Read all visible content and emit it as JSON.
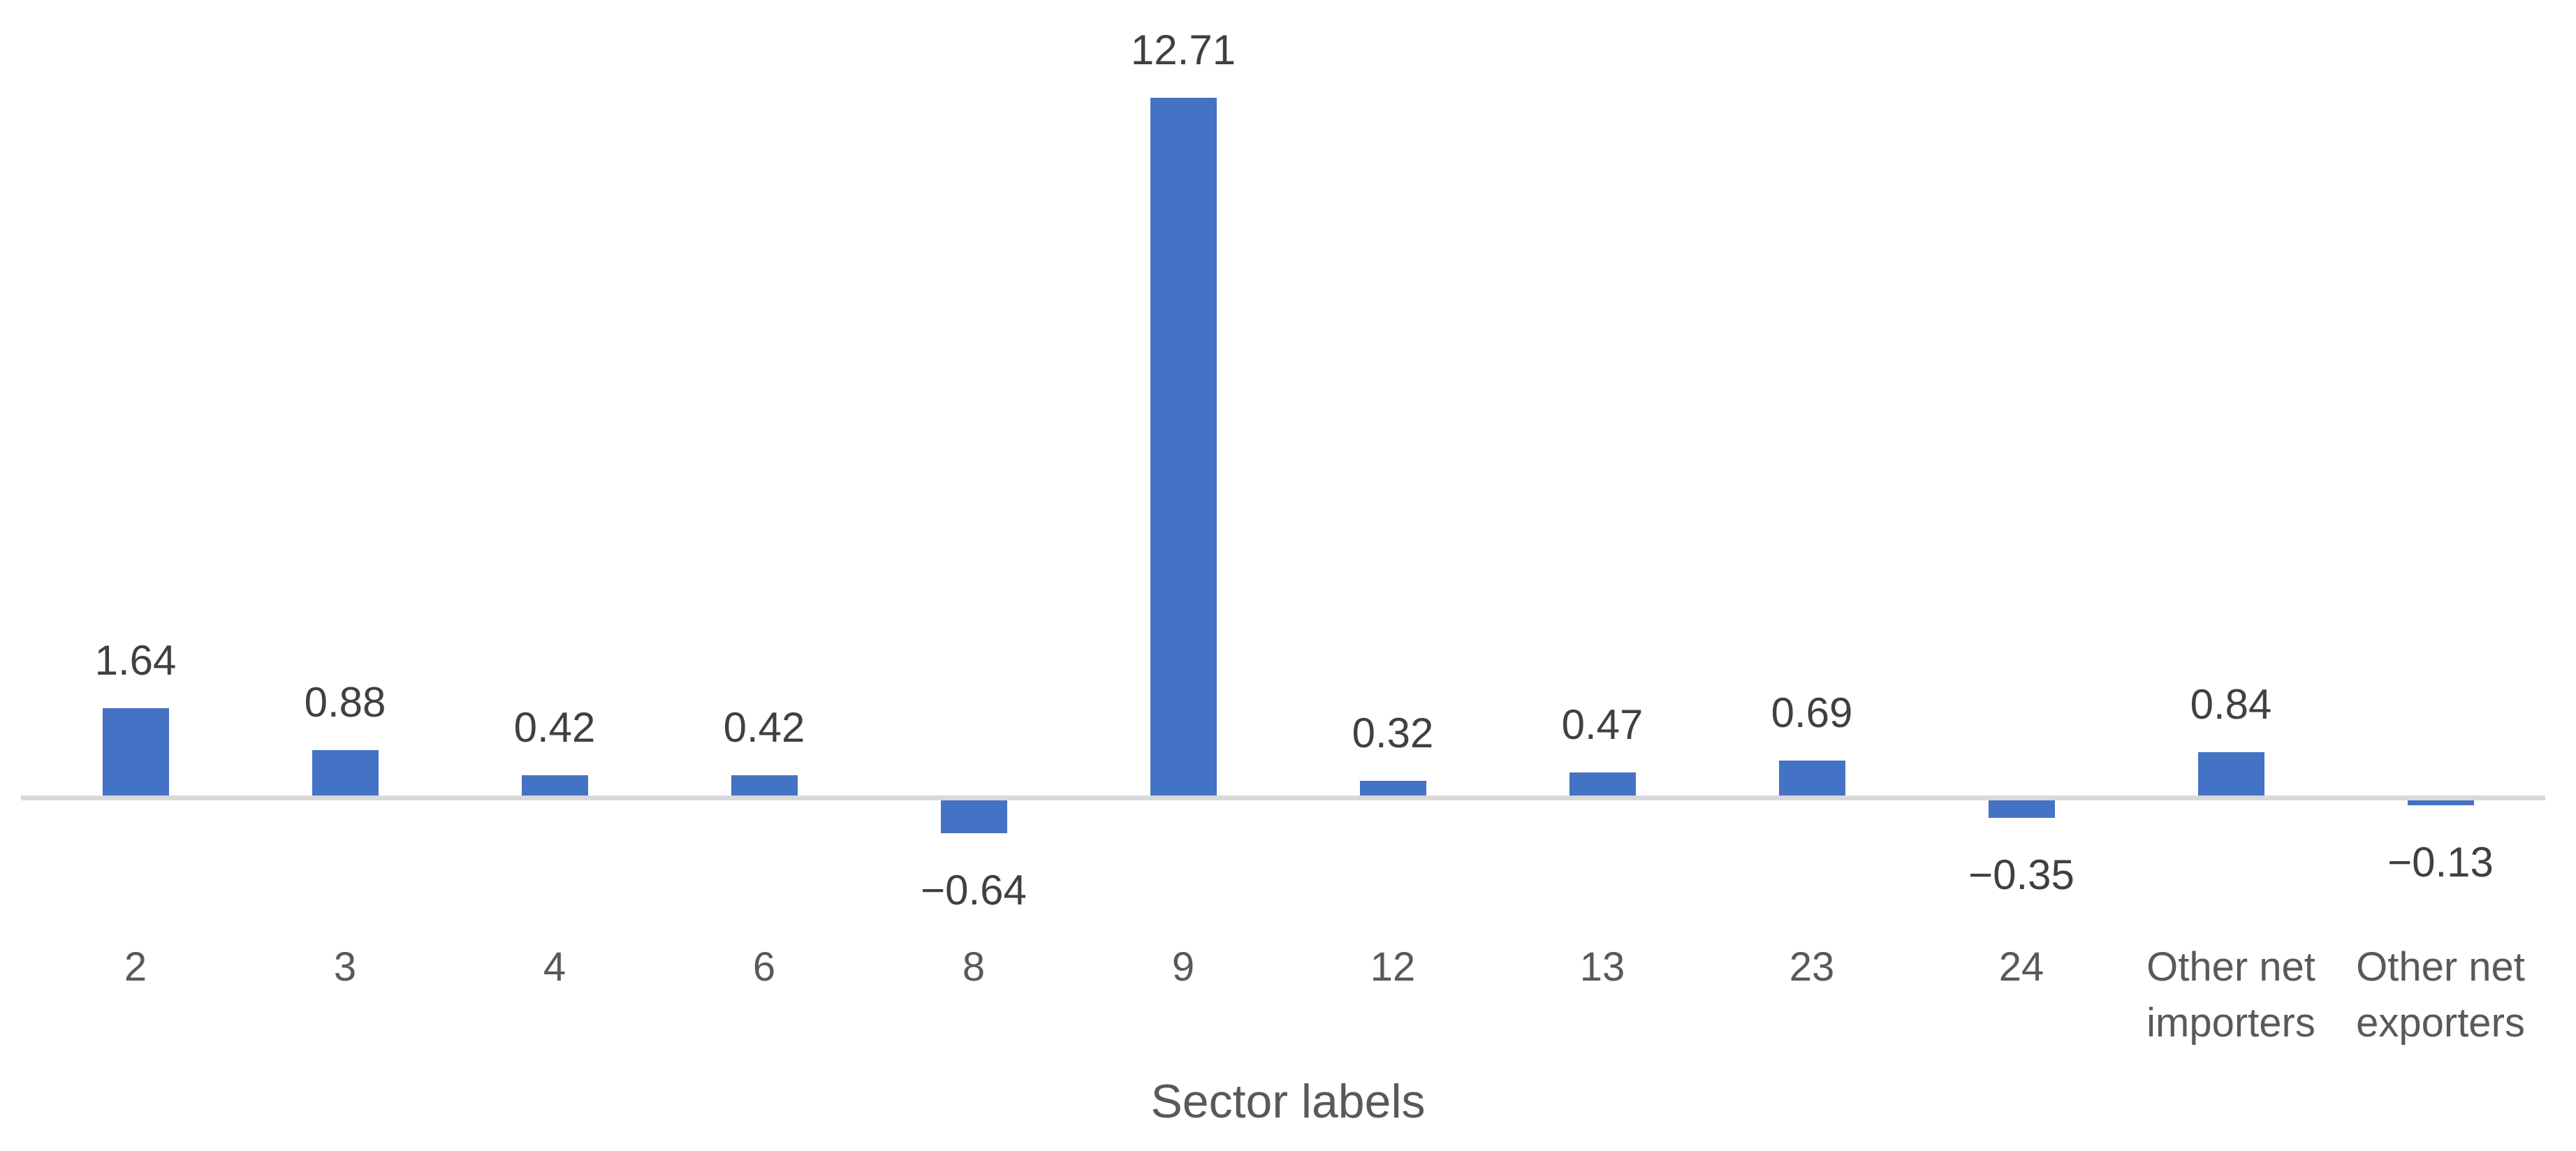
{
  "chart_data": {
    "type": "bar",
    "categories": [
      "2",
      "3",
      "4",
      "6",
      "8",
      "9",
      "12",
      "13",
      "23",
      "24",
      "Other net importers",
      "Other net exporters"
    ],
    "values": [
      1.64,
      0.88,
      0.42,
      0.42,
      -0.64,
      12.71,
      0.32,
      0.47,
      0.69,
      -0.35,
      0.84,
      -0.13
    ],
    "value_labels": [
      "1.64",
      "0.88",
      "0.42",
      "0.42",
      "−0.64",
      "12.71",
      "0.32",
      "0.47",
      "0.69",
      "−0.35",
      "0.84",
      "−0.13"
    ],
    "title": "",
    "xlabel": "Sector labels",
    "ylabel": "",
    "ylim": [
      -1.5,
      14.5
    ],
    "grid": "off",
    "legend": "none",
    "data_label_position": "outside-end",
    "bar_color": "#4472C4",
    "axis_line_color": "#D9D9D9",
    "value_label_color": "#404040",
    "category_label_color": "#595959",
    "axis_title_color": "#595959",
    "background_color": "#FFFFFF"
  }
}
